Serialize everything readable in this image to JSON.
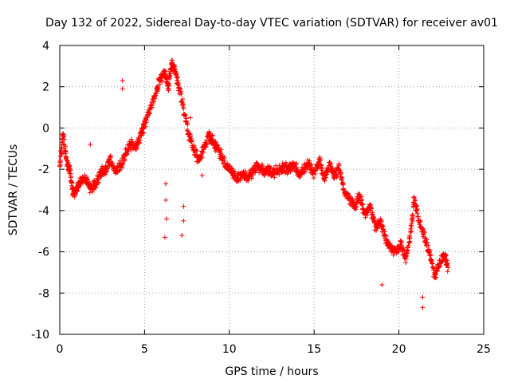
{
  "chart_data": {
    "type": "scatter",
    "title": "Day 132 of 2022, Sidereal Day-to-day VTEC variation (SDTVAR) for receiver av01",
    "xlabel": "GPS time / hours",
    "ylabel": "SDTVAR / TECUs",
    "xlim": [
      0,
      25
    ],
    "ylim": [
      -10,
      4
    ],
    "xticks": [
      0,
      5,
      10,
      15,
      20,
      25
    ],
    "yticks": [
      4,
      2,
      0,
      -2,
      -4,
      -6,
      -8,
      -10
    ],
    "grid": true,
    "marker": "plus",
    "color": "#ff0000",
    "trend": [
      [
        0.0,
        -1.9
      ],
      [
        0.2,
        -0.3
      ],
      [
        0.4,
        -1.6
      ],
      [
        0.6,
        -2.1
      ],
      [
        0.8,
        -3.2
      ],
      [
        1.0,
        -3.0
      ],
      [
        1.2,
        -2.6
      ],
      [
        1.5,
        -2.4
      ],
      [
        1.8,
        -2.9
      ],
      [
        2.1,
        -2.8
      ],
      [
        2.4,
        -2.2
      ],
      [
        2.7,
        -2.0
      ],
      [
        3.0,
        -1.5
      ],
      [
        3.3,
        -2.1
      ],
      [
        3.6,
        -1.8
      ],
      [
        3.9,
        -1.2
      ],
      [
        4.2,
        -0.8
      ],
      [
        4.5,
        -1.0
      ],
      [
        4.8,
        -0.3
      ],
      [
        5.0,
        0.2
      ],
      [
        5.3,
        0.8
      ],
      [
        5.6,
        1.6
      ],
      [
        5.9,
        2.3
      ],
      [
        6.2,
        2.7
      ],
      [
        6.4,
        2.0
      ],
      [
        6.6,
        3.1
      ],
      [
        6.8,
        2.8
      ],
      [
        7.0,
        2.0
      ],
      [
        7.3,
        0.9
      ],
      [
        7.6,
        -0.3
      ],
      [
        7.9,
        -1.0
      ],
      [
        8.2,
        -1.5
      ],
      [
        8.5,
        -1.0
      ],
      [
        8.8,
        -0.4
      ],
      [
        9.0,
        -0.6
      ],
      [
        9.3,
        -1.0
      ],
      [
        9.6,
        -1.5
      ],
      [
        9.9,
        -1.9
      ],
      [
        10.2,
        -2.2
      ],
      [
        10.5,
        -2.4
      ],
      [
        10.8,
        -2.2
      ],
      [
        11.1,
        -2.4
      ],
      [
        11.4,
        -2.1
      ],
      [
        11.7,
        -1.9
      ],
      [
        12.0,
        -2.1
      ],
      [
        12.3,
        -2.0
      ],
      [
        12.6,
        -2.2
      ],
      [
        12.9,
        -2.0
      ],
      [
        13.2,
        -1.9
      ],
      [
        13.5,
        -2.0
      ],
      [
        13.8,
        -1.7
      ],
      [
        14.1,
        -2.3
      ],
      [
        14.4,
        -2.0
      ],
      [
        14.7,
        -1.7
      ],
      [
        15.0,
        -2.2
      ],
      [
        15.3,
        -1.5
      ],
      [
        15.6,
        -2.4
      ],
      [
        15.9,
        -1.8
      ],
      [
        16.2,
        -2.3
      ],
      [
        16.5,
        -1.9
      ],
      [
        16.8,
        -3.2
      ],
      [
        17.1,
        -3.5
      ],
      [
        17.4,
        -3.8
      ],
      [
        17.7,
        -3.3
      ],
      [
        18.0,
        -4.3
      ],
      [
        18.3,
        -3.8
      ],
      [
        18.6,
        -4.8
      ],
      [
        18.9,
        -4.5
      ],
      [
        19.2,
        -5.3
      ],
      [
        19.5,
        -5.8
      ],
      [
        19.8,
        -6.0
      ],
      [
        20.1,
        -5.6
      ],
      [
        20.4,
        -6.3
      ],
      [
        20.7,
        -5.1
      ],
      [
        20.9,
        -3.4
      ],
      [
        21.2,
        -4.5
      ],
      [
        21.5,
        -5.2
      ],
      [
        21.8,
        -6.0
      ],
      [
        22.1,
        -7.2
      ],
      [
        22.4,
        -6.5
      ],
      [
        22.7,
        -6.2
      ],
      [
        22.9,
        -6.8
      ]
    ],
    "outliers": [
      [
        3.7,
        2.3
      ],
      [
        3.7,
        1.9
      ],
      [
        6.25,
        -2.7
      ],
      [
        6.25,
        -3.5
      ],
      [
        6.3,
        -4.4
      ],
      [
        6.2,
        -5.3
      ],
      [
        7.3,
        -3.8
      ],
      [
        7.3,
        -4.5
      ],
      [
        7.2,
        -5.2
      ],
      [
        1.8,
        -0.8
      ],
      [
        0.55,
        -1.8
      ],
      [
        19.0,
        -7.6
      ],
      [
        21.4,
        -8.2
      ],
      [
        21.4,
        -8.7
      ],
      [
        9.2,
        -0.7
      ],
      [
        7.7,
        0.5
      ],
      [
        8.4,
        -2.3
      ]
    ]
  }
}
